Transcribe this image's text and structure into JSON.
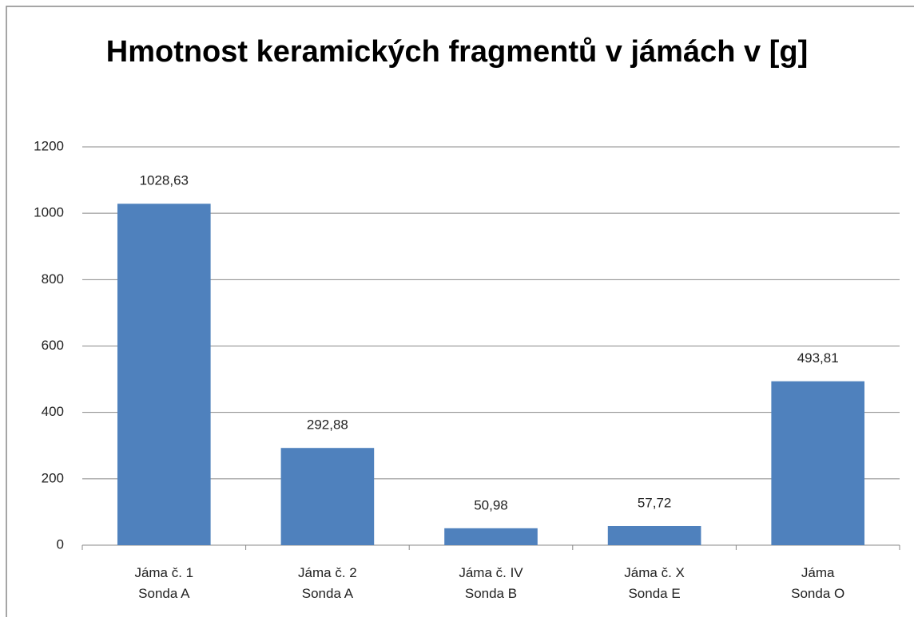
{
  "chart_data": {
    "type": "bar",
    "title": "Hmotnost keramických fragmentů v jámách v [g]",
    "categories": [
      "Jáma č. 1\nSonda A",
      "Jáma č. 2\nSonda A",
      "Jáma č. IV\nSonda B",
      "Jáma č. X\nSonda E",
      "Jáma\nSonda O"
    ],
    "values": [
      1028.63,
      292.88,
      50.98,
      57.72,
      493.81
    ],
    "value_labels": [
      "1028,63",
      "292,88",
      "50,98",
      "57,72",
      "493,81"
    ],
    "color": "#4f81bd",
    "ylim": [
      0,
      1200
    ],
    "yticks": [
      0,
      200,
      400,
      600,
      800,
      1000,
      1200
    ],
    "grid": true
  }
}
